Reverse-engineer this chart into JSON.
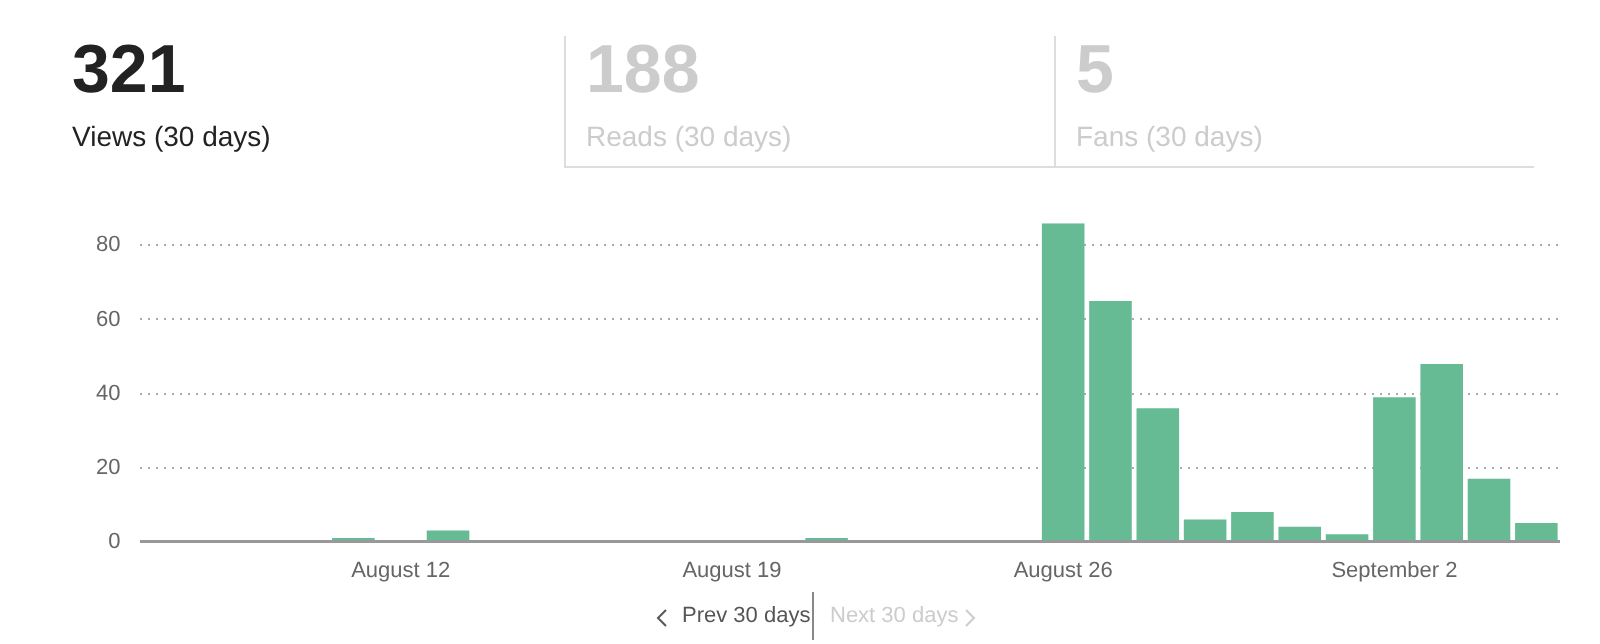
{
  "chart_data": {
    "type": "bar",
    "categories": [
      null,
      null,
      null,
      null,
      null,
      "August 12",
      null,
      null,
      null,
      null,
      null,
      null,
      "August 19",
      null,
      null,
      null,
      null,
      null,
      null,
      "August 26",
      null,
      null,
      null,
      null,
      null,
      null,
      "September 2",
      null,
      null,
      null
    ],
    "values": [
      0,
      0,
      0,
      0,
      1,
      0,
      3,
      0,
      0,
      0,
      0,
      0,
      0,
      0,
      1,
      0,
      0,
      0,
      0,
      86,
      65,
      36,
      6,
      8,
      4,
      2,
      39,
      48,
      17,
      5
    ],
    "color": "#66bb94",
    "ylim": [
      0,
      86
    ],
    "yticks": [
      0,
      20,
      40,
      60,
      80
    ],
    "grid": "y",
    "legend": false,
    "annotations": [
      "321",
      "Views (30 days)",
      "188",
      "Reads (30 days)",
      "5",
      "Fans (30 days)",
      "Prev 30 days",
      "Next 30 days"
    ]
  }
}
